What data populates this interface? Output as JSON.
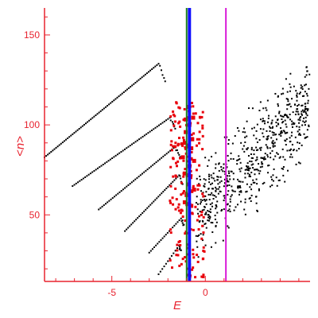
{
  "chart_data": {
    "type": "scatter",
    "xlabel": "E",
    "ylabel": "<n>",
    "xlim": [
      -8.6,
      5.6
    ],
    "ylim": [
      13,
      165
    ],
    "x_ticks": [
      {
        "value": -5,
        "label": "-5"
      },
      {
        "value": 0,
        "label": "0"
      }
    ],
    "y_ticks": [
      {
        "value": 50,
        "label": "50"
      },
      {
        "value": 100,
        "label": "100"
      },
      {
        "value": 150,
        "label": "150"
      }
    ],
    "grid": false,
    "legend": "none",
    "colors": {
      "axis": "#e8232f",
      "black_series": "#000000",
      "red_series": "#e8000b",
      "line_green": "#1a7f1a",
      "line_blue": "#1010ff",
      "line_magenta": "#d81bd8"
    },
    "vertical_lines": [
      {
        "x": -1.0,
        "color": "#1a7f1a"
      },
      {
        "x": -0.85,
        "color": "#1010ff"
      },
      {
        "x": 1.1,
        "color": "#d81bd8"
      }
    ],
    "bands": [
      {
        "x_start": -8.6,
        "y_start": 82,
        "x_end": -2.5,
        "y_end": 134,
        "tail_x": -2.15,
        "tail_y": 124,
        "n": 70
      },
      {
        "x_start": -7.1,
        "y_start": 66,
        "x_end": -1.9,
        "y_end": 104,
        "tail_x": -1.6,
        "tail_y": 98,
        "n": 55
      },
      {
        "x_start": -5.7,
        "y_start": 53,
        "x_end": -1.6,
        "y_end": 88,
        "tail_x": -1.35,
        "tail_y": 82,
        "n": 45
      },
      {
        "x_start": -4.3,
        "y_start": 41,
        "x_end": -1.4,
        "y_end": 72,
        "tail_x": -1.2,
        "tail_y": 66,
        "n": 35
      },
      {
        "x_start": -3.0,
        "y_start": 29,
        "x_end": -1.3,
        "y_end": 48,
        "tail_x": -1.15,
        "tail_y": 44,
        "n": 20
      },
      {
        "x_start": -2.5,
        "y_start": 17,
        "x_end": -1.4,
        "y_end": 33,
        "tail_x": -1.3,
        "tail_y": 30,
        "n": 12
      }
    ],
    "black_cloud": {
      "x_range": [
        -0.5,
        5.6
      ],
      "y_center_at_x0": 55,
      "slope": 10,
      "spread": 36,
      "n": 620
    },
    "red_cloud": {
      "x_range": [
        -1.9,
        -0.05
      ],
      "y_range": [
        15,
        113
      ],
      "n": 190
    },
    "red_large": [
      [
        -1.05,
        96
      ],
      [
        -1.1,
        90
      ],
      [
        -0.95,
        88
      ],
      [
        -0.75,
        87
      ],
      [
        -1.1,
        73
      ],
      [
        -0.95,
        72
      ],
      [
        -0.8,
        71
      ],
      [
        -1.1,
        57
      ],
      [
        -0.95,
        56
      ],
      [
        -0.75,
        55
      ],
      [
        -0.9,
        110
      ],
      [
        -0.65,
        104
      ],
      [
        -0.85,
        100
      ],
      [
        -1.05,
        103
      ],
      [
        -0.6,
        80
      ],
      [
        -0.6,
        64
      ],
      [
        -1.2,
        82
      ],
      [
        -0.7,
        92
      ],
      [
        -1.0,
        61
      ],
      [
        -0.85,
        77
      ]
    ]
  }
}
